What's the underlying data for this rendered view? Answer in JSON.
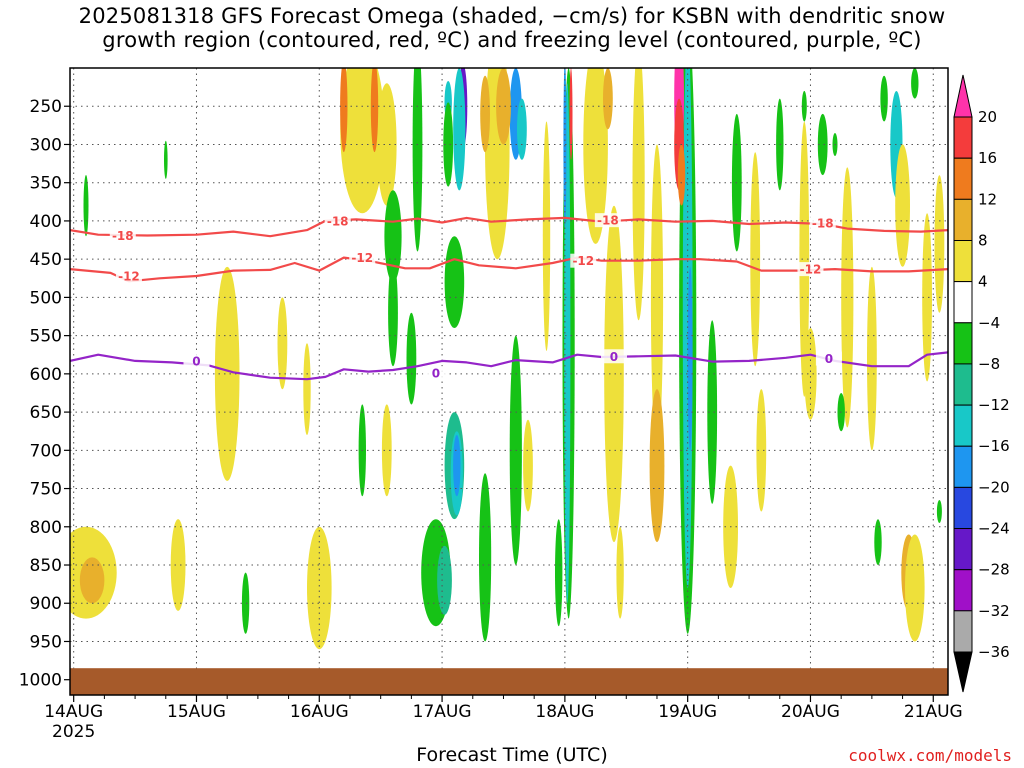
{
  "title": {
    "line1": "2025081318 GFS Forecast Omega (shaded, −cm/s) for KSBN with dendritic snow",
    "line2": "growth region (contoured, red, ºC) and freezing level (contoured, purple, ºC)"
  },
  "xlabel": "Forecast Time (UTC)",
  "credit": "coolwx.com/models",
  "chart_data": {
    "type": "heatmap",
    "x_axis": {
      "ticks": [
        {
          "label": "14AUG",
          "sub": "2025",
          "day": 0
        },
        {
          "label": "15AUG",
          "sub": "",
          "day": 1
        },
        {
          "label": "16AUG",
          "sub": "",
          "day": 2
        },
        {
          "label": "17AUG",
          "sub": "",
          "day": 3
        },
        {
          "label": "18AUG",
          "sub": "",
          "day": 4
        },
        {
          "label": "19AUG",
          "sub": "",
          "day": 5
        },
        {
          "label": "20AUG",
          "sub": "",
          "day": 6
        },
        {
          "label": "21AUG",
          "sub": "",
          "day": 7
        }
      ],
      "range_days": [
        -0.03,
        7.12
      ]
    },
    "y_axis": {
      "ticks": [
        250,
        300,
        350,
        400,
        450,
        500,
        550,
        600,
        650,
        700,
        750,
        800,
        850,
        900,
        950,
        1000
      ],
      "range": [
        200,
        1020
      ],
      "grid": true
    },
    "surface_fill_top": 985,
    "colorbar": {
      "labels": [
        "20",
        "16",
        "12",
        "8",
        "4",
        "−4",
        "−8",
        "−12",
        "−16",
        "−20",
        "−24",
        "−28",
        "−32",
        "−36"
      ],
      "colors": [
        "#ff33aa",
        "#f43c3c",
        "#ef7b1e",
        "#e8b02c",
        "#eee03a",
        "#ffffff",
        "#16c216",
        "#1ebc8e",
        "#18c8c8",
        "#1e96f0",
        "#2848e0",
        "#6618c8",
        "#a010c8",
        "#aaaaaa",
        "#000000"
      ]
    },
    "contours": [
      {
        "label": "-18",
        "color": "#f24a4a",
        "points": [
          [
            -0.03,
            412
          ],
          [
            0.2,
            418
          ],
          [
            0.6,
            419
          ],
          [
            1.0,
            418
          ],
          [
            1.3,
            414
          ],
          [
            1.6,
            420
          ],
          [
            1.9,
            412
          ],
          [
            2.05,
            400
          ],
          [
            2.3,
            398
          ],
          [
            2.6,
            401
          ],
          [
            2.8,
            397
          ],
          [
            3.0,
            402
          ],
          [
            3.2,
            396
          ],
          [
            3.4,
            401
          ],
          [
            3.7,
            398
          ],
          [
            4.0,
            396
          ],
          [
            4.3,
            401
          ],
          [
            4.6,
            398
          ],
          [
            4.9,
            401
          ],
          [
            5.2,
            400
          ],
          [
            5.5,
            404
          ],
          [
            5.8,
            402
          ],
          [
            6.1,
            404
          ],
          [
            6.3,
            410
          ],
          [
            6.6,
            413
          ],
          [
            6.9,
            414
          ],
          [
            7.12,
            412
          ]
        ],
        "labels_at": [
          [
            0.4,
            419
          ],
          [
            2.15,
            400
          ],
          [
            4.35,
            399
          ],
          [
            6.1,
            403
          ]
        ]
      },
      {
        "label": "-12",
        "color": "#f24a4a",
        "points": [
          [
            -0.03,
            463
          ],
          [
            0.3,
            468
          ],
          [
            0.45,
            479
          ],
          [
            0.7,
            475
          ],
          [
            1.0,
            472
          ],
          [
            1.3,
            465
          ],
          [
            1.6,
            464
          ],
          [
            1.8,
            455
          ],
          [
            2.0,
            465
          ],
          [
            2.2,
            448
          ],
          [
            2.4,
            452
          ],
          [
            2.7,
            462
          ],
          [
            2.9,
            462
          ],
          [
            3.1,
            450
          ],
          [
            3.3,
            458
          ],
          [
            3.6,
            462
          ],
          [
            3.9,
            455
          ],
          [
            4.1,
            448
          ],
          [
            4.3,
            452
          ],
          [
            4.6,
            452
          ],
          [
            4.9,
            450
          ],
          [
            5.1,
            450
          ],
          [
            5.4,
            453
          ],
          [
            5.6,
            465
          ],
          [
            5.9,
            465
          ],
          [
            6.2,
            463
          ],
          [
            6.5,
            466
          ],
          [
            6.8,
            466
          ],
          [
            7.12,
            463
          ]
        ],
        "labels_at": [
          [
            0.45,
            472
          ],
          [
            2.35,
            448
          ],
          [
            4.15,
            452
          ],
          [
            6.0,
            463
          ]
        ]
      },
      {
        "label": "0",
        "color": "#9424c8",
        "points": [
          [
            -0.03,
            583
          ],
          [
            0.2,
            575
          ],
          [
            0.5,
            583
          ],
          [
            0.8,
            585
          ],
          [
            1.1,
            589
          ],
          [
            1.3,
            598
          ],
          [
            1.6,
            605
          ],
          [
            1.9,
            607
          ],
          [
            2.05,
            604
          ],
          [
            2.2,
            594
          ],
          [
            2.4,
            597
          ],
          [
            2.6,
            595
          ],
          [
            2.8,
            590
          ],
          [
            3.0,
            583
          ],
          [
            3.2,
            585
          ],
          [
            3.4,
            590
          ],
          [
            3.6,
            582
          ],
          [
            3.9,
            585
          ],
          [
            4.1,
            575
          ],
          [
            4.3,
            578
          ],
          [
            4.6,
            577
          ],
          [
            4.9,
            576
          ],
          [
            5.2,
            584
          ],
          [
            5.5,
            583
          ],
          [
            5.8,
            579
          ],
          [
            6.0,
            575
          ],
          [
            6.2,
            583
          ],
          [
            6.5,
            590
          ],
          [
            6.8,
            590
          ],
          [
            6.95,
            575
          ],
          [
            7.12,
            572
          ]
        ],
        "labels_at": [
          [
            1.0,
            583
          ],
          [
            2.95,
            599
          ],
          [
            4.4,
            577
          ],
          [
            6.15,
            580
          ]
        ]
      }
    ]
  }
}
